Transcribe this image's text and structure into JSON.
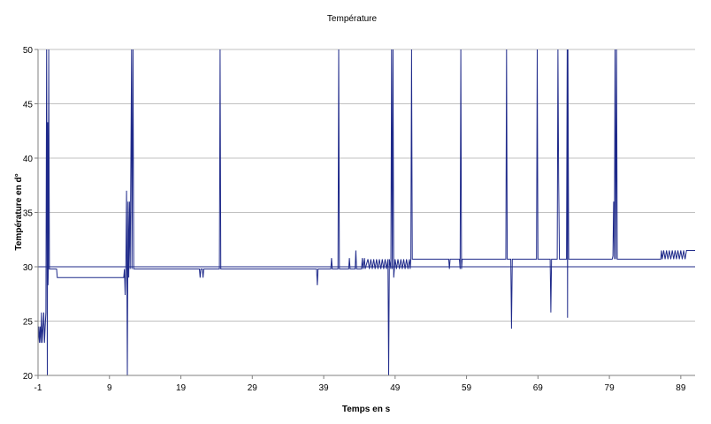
{
  "chart_data": {
    "type": "line",
    "title": "Température",
    "xlabel": "Temps en s",
    "ylabel": "Température en d°",
    "xlim": [
      -1,
      91
    ],
    "ylim": [
      20,
      50
    ],
    "x_ticks": [
      -1,
      9,
      19,
      29,
      39,
      49,
      59,
      69,
      79,
      89
    ],
    "y_ticks": [
      20,
      25,
      30,
      35,
      40,
      45,
      50
    ],
    "grid": "horizontal",
    "legend": "none",
    "colors": {
      "line": "#1f2a8a",
      "grid": "#c0c0c0",
      "axis": "#808080"
    },
    "series": [
      {
        "points": [
          [
            -1.0,
            23.0
          ],
          [
            -0.9,
            24.5
          ],
          [
            -0.8,
            23.0
          ],
          [
            -0.7,
            24.5
          ],
          [
            -0.6,
            23.0
          ],
          [
            -0.5,
            25.8
          ],
          [
            -0.4,
            23.0
          ],
          [
            -0.3,
            24.5
          ],
          [
            -0.2,
            25.8
          ],
          [
            -0.1,
            23.0
          ],
          [
            0.0,
            24.5
          ],
          [
            0.1,
            25.8
          ],
          [
            0.2,
            50.0
          ],
          [
            0.3,
            20.0
          ],
          [
            0.35,
            43.3
          ],
          [
            0.4,
            28.3
          ],
          [
            0.45,
            29.8
          ],
          [
            0.5,
            50.0
          ],
          [
            0.6,
            29.8
          ],
          [
            1.0,
            29.8
          ],
          [
            1.6,
            29.8
          ],
          [
            1.7,
            29.0
          ],
          [
            11.0,
            29.0
          ],
          [
            11.1,
            29.8
          ],
          [
            11.2,
            27.4
          ],
          [
            11.3,
            30.0
          ],
          [
            11.4,
            37.0
          ],
          [
            11.5,
            20.0
          ],
          [
            11.6,
            36.0
          ],
          [
            11.7,
            29.0
          ],
          [
            11.8,
            36.0
          ],
          [
            11.9,
            29.8
          ],
          [
            12.1,
            50.0
          ],
          [
            12.15,
            29.8
          ],
          [
            12.3,
            50.0
          ],
          [
            12.4,
            29.8
          ],
          [
            21.6,
            29.8
          ],
          [
            21.7,
            29.0
          ],
          [
            21.8,
            29.8
          ],
          [
            22.0,
            29.8
          ],
          [
            22.1,
            29.0
          ],
          [
            22.2,
            29.8
          ],
          [
            24.4,
            29.8
          ],
          [
            24.5,
            50.0
          ],
          [
            24.6,
            29.8
          ],
          [
            38.0,
            29.8
          ],
          [
            38.1,
            28.3
          ],
          [
            38.2,
            29.8
          ],
          [
            40.0,
            29.8
          ],
          [
            40.1,
            30.8
          ],
          [
            40.2,
            29.8
          ],
          [
            41.0,
            29.8
          ],
          [
            41.1,
            50.0
          ],
          [
            41.2,
            29.8
          ],
          [
            42.5,
            29.8
          ],
          [
            42.6,
            30.8
          ],
          [
            42.7,
            29.8
          ],
          [
            43.4,
            29.8
          ],
          [
            43.5,
            31.5
          ],
          [
            43.6,
            29.8
          ],
          [
            44.3,
            29.8
          ],
          [
            44.4,
            30.8
          ],
          [
            44.5,
            29.8
          ],
          [
            44.7,
            30.8
          ],
          [
            44.8,
            29.8
          ],
          [
            45.2,
            30.7
          ],
          [
            45.4,
            29.8
          ],
          [
            45.6,
            30.7
          ],
          [
            45.8,
            29.8
          ],
          [
            46.0,
            30.7
          ],
          [
            46.2,
            29.8
          ],
          [
            46.4,
            30.7
          ],
          [
            46.6,
            29.8
          ],
          [
            46.8,
            30.7
          ],
          [
            47.0,
            29.8
          ],
          [
            47.2,
            30.7
          ],
          [
            47.4,
            29.8
          ],
          [
            47.6,
            30.7
          ],
          [
            47.8,
            29.8
          ],
          [
            48.0,
            30.7
          ],
          [
            48.1,
            20.0
          ],
          [
            48.2,
            30.7
          ],
          [
            48.4,
            29.8
          ],
          [
            48.5,
            50.0
          ],
          [
            48.6,
            29.8
          ],
          [
            48.7,
            50.0
          ],
          [
            48.8,
            29.0
          ],
          [
            49.0,
            30.7
          ],
          [
            49.2,
            29.8
          ],
          [
            49.4,
            30.7
          ],
          [
            49.6,
            29.8
          ],
          [
            49.8,
            30.7
          ],
          [
            50.0,
            29.8
          ],
          [
            50.2,
            30.7
          ],
          [
            50.4,
            29.8
          ],
          [
            50.6,
            30.7
          ],
          [
            50.8,
            29.8
          ],
          [
            51.0,
            30.7
          ],
          [
            51.1,
            29.8
          ],
          [
            51.2,
            30.7
          ],
          [
            51.3,
            50.0
          ],
          [
            51.4,
            30.7
          ],
          [
            56.5,
            30.7
          ],
          [
            56.6,
            29.8
          ],
          [
            56.7,
            30.7
          ],
          [
            58.0,
            30.7
          ],
          [
            58.1,
            29.8
          ],
          [
            58.2,
            50.0
          ],
          [
            58.3,
            29.8
          ],
          [
            58.4,
            30.7
          ],
          [
            64.5,
            30.7
          ],
          [
            64.6,
            50.0
          ],
          [
            64.7,
            30.7
          ],
          [
            65.2,
            30.7
          ],
          [
            65.3,
            24.3
          ],
          [
            65.4,
            30.7
          ],
          [
            68.8,
            30.7
          ],
          [
            68.9,
            50.0
          ],
          [
            69.0,
            30.7
          ],
          [
            70.7,
            30.7
          ],
          [
            70.8,
            25.8
          ],
          [
            70.9,
            30.7
          ],
          [
            71.7,
            30.7
          ],
          [
            71.8,
            50.0
          ],
          [
            71.9,
            38.0
          ],
          [
            72.0,
            30.7
          ],
          [
            73.0,
            30.7
          ],
          [
            73.1,
            50.0
          ],
          [
            73.15,
            25.3
          ],
          [
            73.2,
            50.0
          ],
          [
            73.3,
            30.7
          ],
          [
            79.4,
            30.7
          ],
          [
            79.5,
            31.0
          ],
          [
            79.6,
            36.0
          ],
          [
            79.7,
            30.7
          ],
          [
            79.8,
            50.0
          ],
          [
            79.9,
            30.7
          ],
          [
            80.0,
            50.0
          ],
          [
            80.1,
            30.7
          ],
          [
            86.2,
            30.7
          ],
          [
            86.3,
            31.5
          ],
          [
            86.4,
            30.7
          ],
          [
            86.6,
            31.5
          ],
          [
            86.8,
            30.7
          ],
          [
            87.0,
            31.5
          ],
          [
            87.2,
            30.7
          ],
          [
            87.4,
            31.5
          ],
          [
            87.6,
            30.7
          ],
          [
            87.8,
            31.5
          ],
          [
            88.0,
            30.7
          ],
          [
            88.2,
            31.5
          ],
          [
            88.4,
            30.7
          ],
          [
            88.6,
            31.5
          ],
          [
            88.8,
            30.7
          ],
          [
            89.0,
            31.5
          ],
          [
            89.2,
            30.7
          ],
          [
            89.4,
            31.5
          ],
          [
            89.6,
            30.7
          ],
          [
            89.8,
            31.5
          ],
          [
            90.0,
            31.5
          ],
          [
            91.0,
            31.5
          ]
        ]
      },
      {
        "points": [
          [
            -1.0,
            30.0
          ],
          [
            91.0,
            30.0
          ]
        ]
      }
    ]
  }
}
